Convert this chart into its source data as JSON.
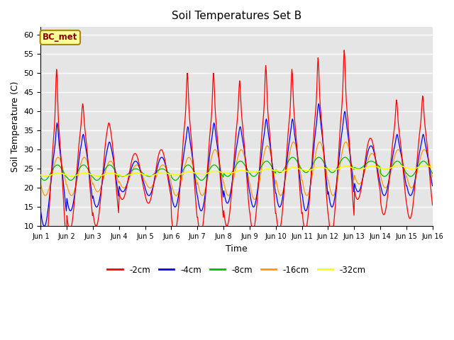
{
  "title": "Soil Temperatures Set B",
  "xlabel": "Time",
  "ylabel": "Soil Temperature (C)",
  "ylim": [
    10,
    62
  ],
  "yticks": [
    10,
    15,
    20,
    25,
    30,
    35,
    40,
    45,
    50,
    55,
    60
  ],
  "annotation": "BC_met",
  "background_color": "#e5e5e5",
  "series_colors": [
    "#ff0000",
    "#0000ff",
    "#00bb00",
    "#ff9900",
    "#ffff00"
  ],
  "series_labels": [
    "-2cm",
    "-4cm",
    "-8cm",
    "-16cm",
    "-32cm"
  ],
  "x_tick_labels": [
    "Jun 1",
    "Jun 2",
    "Jun 3",
    "Jun 4",
    "Jun 5",
    "Jun 6",
    "Jun 7",
    "Jun 8",
    "Jun 9",
    "Jun 10",
    "Jun 11",
    "Jun 12",
    "Jun 13",
    "Jun 14",
    "Jun 15",
    "Jun 16"
  ],
  "days": 15,
  "n_per_day": 48,
  "d2_means": [
    19,
    23,
    23,
    23,
    23,
    24,
    24,
    25,
    25,
    25,
    26,
    26,
    25,
    25,
    25
  ],
  "d2_amps": [
    19,
    14,
    13,
    6,
    7,
    16,
    16,
    15,
    16,
    16,
    17,
    18,
    8,
    12,
    13
  ],
  "d2_spikes": [
    13,
    5,
    1,
    0,
    0,
    10,
    10,
    8,
    11,
    10,
    11,
    12,
    0,
    6,
    6
  ],
  "d4_means": [
    21,
    23,
    23,
    23,
    23,
    24,
    24,
    25,
    25,
    25,
    26,
    26,
    25,
    25,
    25
  ],
  "d4_amps": [
    11,
    9,
    8,
    4,
    5,
    9,
    10,
    9,
    10,
    10,
    12,
    11,
    6,
    7,
    7
  ],
  "d4_spikes": [
    5,
    2,
    1,
    0,
    0,
    3,
    3,
    2,
    3,
    3,
    4,
    3,
    0,
    2,
    2
  ],
  "d8_means": [
    24,
    24,
    24,
    24,
    24,
    24,
    24,
    25,
    25,
    26,
    26,
    26,
    26,
    25,
    25
  ],
  "d8_amps": [
    2,
    2,
    2,
    1,
    1,
    2,
    2,
    2,
    2,
    2,
    2,
    2,
    1,
    2,
    2
  ],
  "d16_means": [
    23,
    23,
    23,
    23,
    23,
    23,
    24,
    24,
    24,
    25,
    25,
    25,
    25,
    25,
    25
  ],
  "d16_amps": [
    5,
    5,
    4,
    3,
    3,
    5,
    6,
    6,
    7,
    7,
    7,
    7,
    4,
    5,
    5
  ],
  "d32_means": [
    23.5,
    23.5,
    23.5,
    23.5,
    23.6,
    23.8,
    24.0,
    24.2,
    24.5,
    24.8,
    25.0,
    25.2,
    25.3,
    25.4,
    25.4
  ],
  "d32_amps": [
    0.4,
    0.4,
    0.4,
    0.4,
    0.4,
    0.4,
    0.4,
    0.4,
    0.4,
    0.5,
    0.5,
    0.5,
    0.5,
    0.5,
    0.5
  ]
}
